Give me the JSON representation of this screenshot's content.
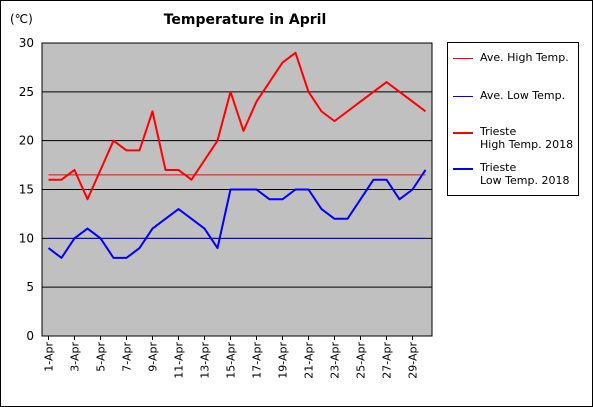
{
  "chart_data": {
    "type": "line",
    "title": "Temperature in April",
    "unit_label": "(℃)",
    "ylim": [
      0,
      30
    ],
    "yticks": [
      "0",
      "5",
      "10",
      "15",
      "20",
      "25",
      "30"
    ],
    "x": [
      1,
      2,
      3,
      4,
      5,
      6,
      7,
      8,
      9,
      10,
      11,
      12,
      13,
      14,
      15,
      16,
      17,
      18,
      19,
      20,
      21,
      22,
      23,
      24,
      25,
      26,
      27,
      28,
      29,
      30
    ],
    "xtick_labels": [
      "1-Apr",
      "3-Apr",
      "5-Apr",
      "7-Apr",
      "9-Apr",
      "11-Apr",
      "13-Apr",
      "15-Apr",
      "17-Apr",
      "19-Apr",
      "21-Apr",
      "23-Apr",
      "25-Apr",
      "27-Apr",
      "29-Apr"
    ],
    "grid": true,
    "legend_position": "right",
    "series": [
      {
        "name": "Ave. High Temp.",
        "color": "#ff0000",
        "width": 1,
        "values": [
          16.5,
          16.5,
          16.5,
          16.5,
          16.5,
          16.5,
          16.5,
          16.5,
          16.5,
          16.5,
          16.5,
          16.5,
          16.5,
          16.5,
          16.5,
          16.5,
          16.5,
          16.5,
          16.5,
          16.5,
          16.5,
          16.5,
          16.5,
          16.5,
          16.5,
          16.5,
          16.5,
          16.5,
          16.5,
          16.5
        ]
      },
      {
        "name": "Ave. Low Temp.",
        "color": "#0000ff",
        "width": 1,
        "values": [
          10,
          10,
          10,
          10,
          10,
          10,
          10,
          10,
          10,
          10,
          10,
          10,
          10,
          10,
          10,
          10,
          10,
          10,
          10,
          10,
          10,
          10,
          10,
          10,
          10,
          10,
          10,
          10,
          10,
          10
        ]
      },
      {
        "name": "Trieste\nHigh Temp. 2018",
        "color": "#ff0000",
        "width": 2,
        "values": [
          16,
          16,
          17,
          14,
          17,
          20,
          19,
          19,
          23,
          17,
          17,
          16,
          18,
          20,
          25,
          21,
          24,
          26,
          28,
          29,
          25,
          23,
          22,
          23,
          24,
          25,
          26,
          25,
          24,
          23
        ]
      },
      {
        "name": "Trieste\nLow Temp. 2018",
        "color": "#0000ff",
        "width": 2,
        "values": [
          9,
          8,
          10,
          11,
          10,
          8,
          8,
          9,
          11,
          12,
          13,
          12,
          11,
          9,
          15,
          15,
          15,
          14,
          14,
          15,
          15,
          13,
          12,
          12,
          14,
          16,
          16,
          14,
          15,
          17
        ]
      }
    ],
    "plot_bg": "#c0c0c0"
  }
}
